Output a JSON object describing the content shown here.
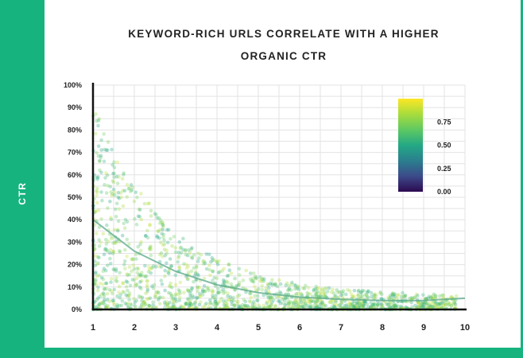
{
  "chart_data": {
    "type": "scatter",
    "title_lines": [
      "KEYWORD-RICH URLS CORRELATE WITH A HIGHER",
      "ORGANIC CTR"
    ],
    "ylabel": "CTR",
    "xlabel": "",
    "x_ticks": [
      "1",
      "2",
      "3",
      "4",
      "5",
      "6",
      "7",
      "8",
      "9",
      "10"
    ],
    "y_ticks": [
      "0%",
      "10%",
      "20%",
      "30%",
      "40%",
      "50%",
      "60%",
      "70%",
      "80%",
      "90%",
      "100%"
    ],
    "xlim": [
      1,
      10
    ],
    "ylim": [
      0,
      100
    ],
    "grid": true,
    "trend_line": {
      "x": [
        1,
        2,
        3,
        4,
        5,
        6,
        7,
        8,
        9,
        10
      ],
      "y": [
        40,
        26,
        17,
        11,
        7.5,
        5.5,
        4.5,
        4,
        4,
        5
      ]
    },
    "colorbar": {
      "ticks": [
        "0.00",
        "0.25",
        "0.50",
        "0.75"
      ],
      "range": [
        0,
        1
      ],
      "colors": [
        "#2d0a51",
        "#3c4a8a",
        "#2a7f8e",
        "#24a884",
        "#5ec962",
        "#a8dc3c",
        "#fde725"
      ]
    },
    "colors": {
      "accent": "#17b37e",
      "trend": "#5aa88a"
    }
  }
}
